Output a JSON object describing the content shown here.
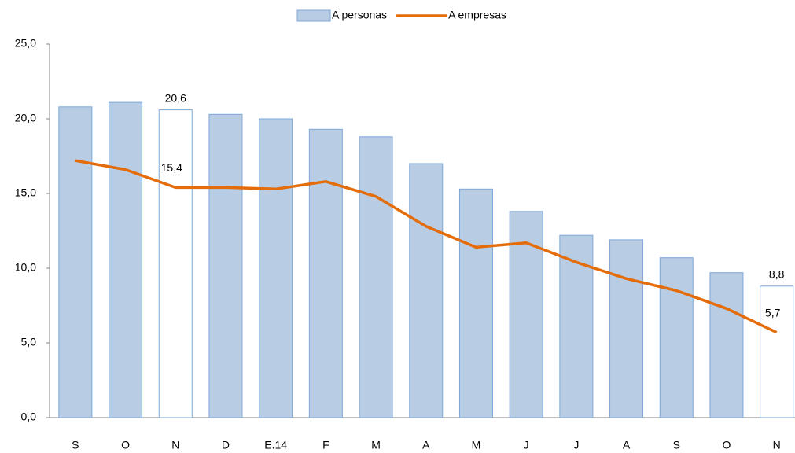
{
  "chart_data": {
    "type": "bar-line",
    "categories": [
      "S",
      "O",
      "N",
      "D",
      "E.14",
      "F",
      "M",
      "A",
      "M",
      "J",
      "J",
      "A",
      "S",
      "O",
      "N"
    ],
    "series": [
      {
        "name": "A personas",
        "type": "bar",
        "color": "#b8cce4",
        "edge": "#7da7d9",
        "values": [
          20.8,
          21.1,
          20.6,
          20.3,
          20.0,
          19.3,
          18.8,
          17.0,
          15.3,
          13.8,
          12.2,
          11.9,
          10.7,
          9.7,
          8.8
        ],
        "value_labels": [
          null,
          null,
          "20,6",
          null,
          null,
          null,
          null,
          null,
          null,
          null,
          null,
          null,
          null,
          null,
          "8,8"
        ]
      },
      {
        "name": "A empresas",
        "type": "line",
        "color": "#e46c0a",
        "values": [
          17.2,
          16.6,
          15.4,
          15.4,
          15.3,
          15.8,
          14.8,
          12.8,
          11.4,
          11.7,
          10.4,
          9.3,
          8.5,
          7.3,
          5.7
        ],
        "value_labels": [
          null,
          null,
          "15,4",
          null,
          null,
          null,
          null,
          null,
          null,
          null,
          null,
          null,
          null,
          null,
          "5,7"
        ]
      }
    ],
    "ylim": [
      0,
      25
    ],
    "yticks": [
      {
        "value": 0,
        "label": "0,0"
      },
      {
        "value": 5,
        "label": "5,0"
      },
      {
        "value": 10,
        "label": "10,0"
      },
      {
        "value": 15,
        "label": "15,0"
      },
      {
        "value": 20,
        "label": "20,0"
      },
      {
        "value": 25,
        "label": "25,0"
      }
    ],
    "legend": "top"
  }
}
